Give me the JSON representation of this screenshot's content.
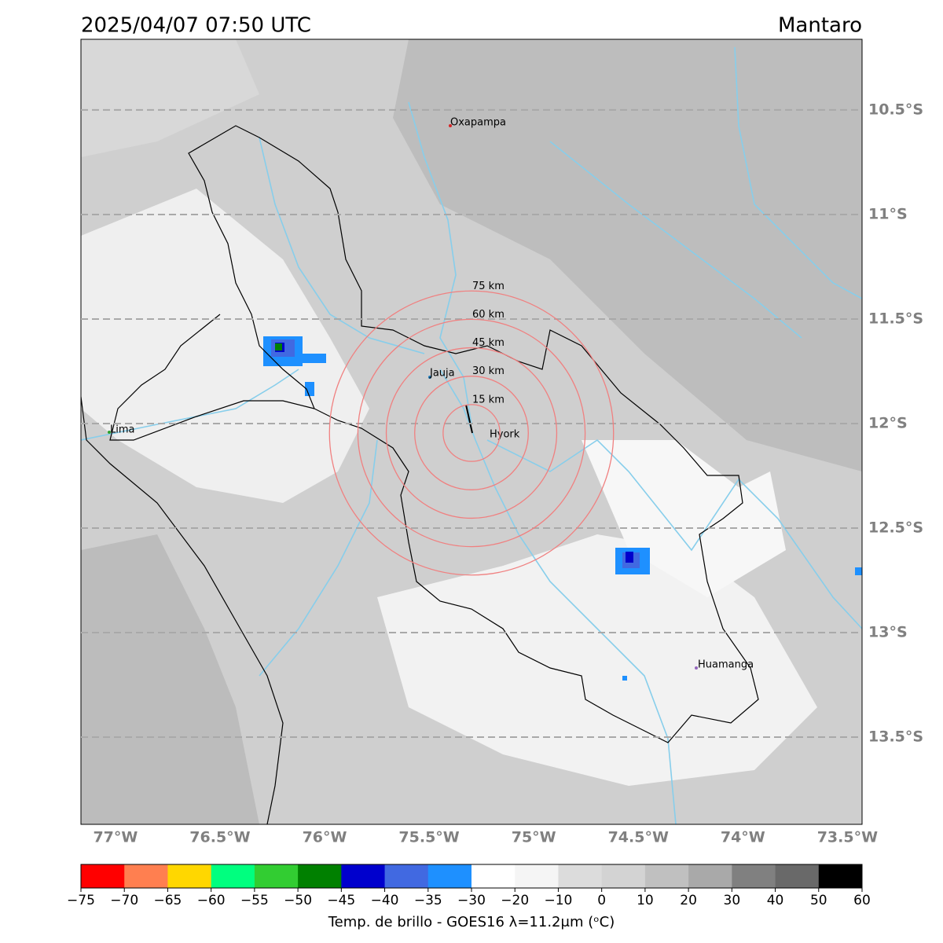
{
  "title": "2025/04/07 07:50 UTC",
  "region": "Mantaro",
  "map": {
    "lon_lim": [
      -77.165,
      -73.43
    ],
    "lat_lim": [
      -10.162,
      -13.917
    ],
    "lat_labels": [
      {
        "value": -10.5,
        "label": "10.5°S"
      },
      {
        "value": -11,
        "label": "11°S"
      },
      {
        "value": -11.5,
        "label": "11.5°S"
      },
      {
        "value": -12,
        "label": "12°S"
      },
      {
        "value": -12.5,
        "label": "12.5°S"
      },
      {
        "value": -13,
        "label": "13°S"
      },
      {
        "value": -13.5,
        "label": "13.5°S"
      }
    ],
    "lon_labels": [
      {
        "value": -77,
        "label": "77°W"
      },
      {
        "value": -76.5,
        "label": "76.5°W"
      },
      {
        "value": -76,
        "label": "76°W"
      },
      {
        "value": -75.5,
        "label": "75.5°W"
      },
      {
        "value": -75,
        "label": "75°W"
      },
      {
        "value": -74.5,
        "label": "74.5°W"
      },
      {
        "value": -74,
        "label": "74°W"
      },
      {
        "value": -73.5,
        "label": "73.5°W"
      }
    ],
    "cities": [
      "Oxapampa",
      "Jauja",
      "Lima",
      "Hyork",
      "Huamanga"
    ],
    "rings": [
      {
        "value": 15,
        "label": "15 km"
      },
      {
        "value": 30,
        "label": "30 km"
      },
      {
        "value": 45,
        "label": "45 km"
      },
      {
        "value": 60,
        "label": "60 km"
      },
      {
        "value": 75,
        "label": "75 km"
      }
    ]
  },
  "colorbar": {
    "label": "Temp. de brillo - GOES16 λ=11.2μm (ᵒC)",
    "colors": [
      "#ff0000",
      "#ff7f50",
      "#ffd700",
      "#00ff7f",
      "#32cd32",
      "#008000",
      "#0000cd",
      "#4169e1",
      "#1e90ff",
      "#ffffff",
      "#f5f5f5",
      "#dcdcdc",
      "#d3d3d3",
      "#c0c0c0",
      "#a9a9a9",
      "#808080",
      "#696969",
      "#000000"
    ],
    "ticks": [
      {
        "value": -75,
        "label": "−75"
      },
      {
        "value": -70,
        "label": "−70"
      },
      {
        "value": -65,
        "label": "−65"
      },
      {
        "value": -60,
        "label": "−60"
      },
      {
        "value": -55,
        "label": "−55"
      },
      {
        "value": -50,
        "label": "−50"
      },
      {
        "value": -45,
        "label": "−45"
      },
      {
        "value": -40,
        "label": "−40"
      },
      {
        "value": -35,
        "label": "−35"
      },
      {
        "value": -30,
        "label": "−30"
      },
      {
        "value": -20,
        "label": "−20"
      },
      {
        "value": -10,
        "label": "−10"
      },
      0,
      10,
      20,
      30,
      40,
      50,
      60
    ]
  }
}
